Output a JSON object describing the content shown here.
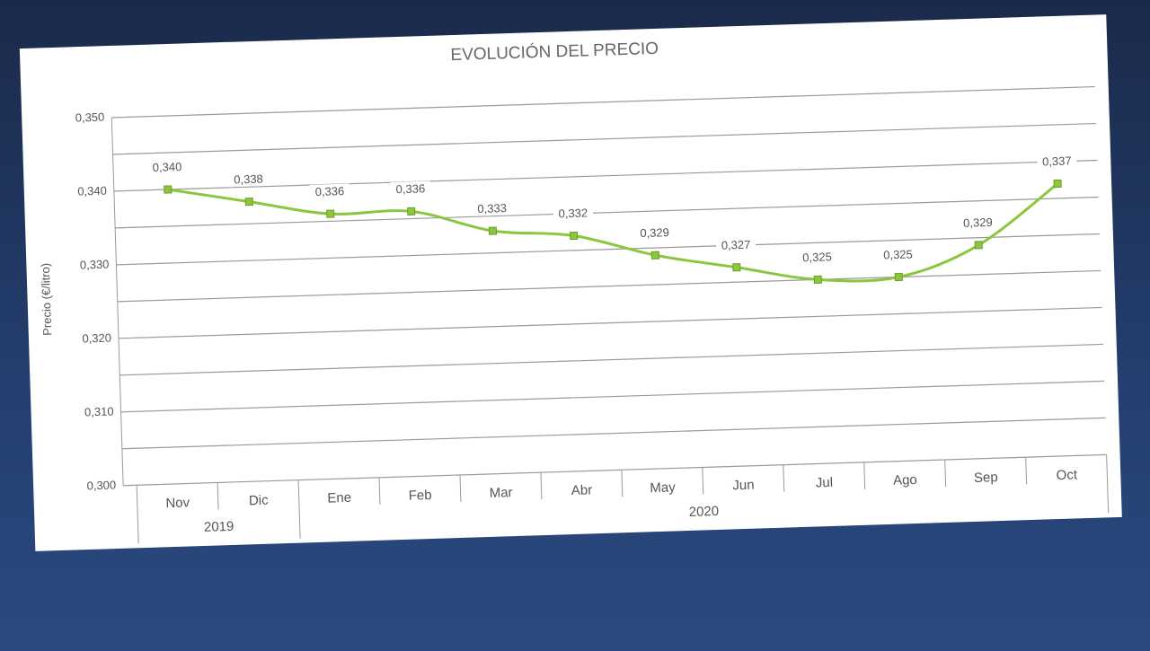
{
  "chart_data": {
    "type": "line",
    "title": "EVOLUCIÓN DEL PRECIO",
    "y_label": "Precio (€/litro)",
    "categories": [
      "Nov",
      "Dic",
      "Ene",
      "Feb",
      "Mar",
      "Abr",
      "May",
      "Jun",
      "Jul",
      "Ago",
      "Sep",
      "Oct"
    ],
    "category_groups": [
      {
        "label": "2019",
        "count": 2
      },
      {
        "label": "2020",
        "count": 10
      }
    ],
    "series": [
      {
        "name": "Precio",
        "color": "#8cc63f",
        "values": [
          0.34,
          0.338,
          0.336,
          0.336,
          0.333,
          0.332,
          0.329,
          0.327,
          0.325,
          0.325,
          0.329,
          0.337
        ],
        "value_labels": [
          "0,340",
          "0,338",
          "0,336",
          "0,336",
          "0,333",
          "0,332",
          "0,329",
          "0,327",
          "0,325",
          "0,325",
          "0,329",
          "0,337"
        ]
      }
    ],
    "ylim": [
      0.3,
      0.35
    ],
    "yticks": [
      {
        "value": 0.3,
        "label": "0,300"
      },
      {
        "value": 0.31,
        "label": "0,310"
      },
      {
        "value": 0.32,
        "label": "0,320"
      },
      {
        "value": 0.33,
        "label": "0,330"
      },
      {
        "value": 0.34,
        "label": "0,340"
      },
      {
        "value": 0.35,
        "label": "0,350"
      }
    ],
    "minor_yticks": [
      0.305,
      0.315,
      0.325,
      0.335,
      0.345
    ],
    "grid": true,
    "smooth": true
  }
}
